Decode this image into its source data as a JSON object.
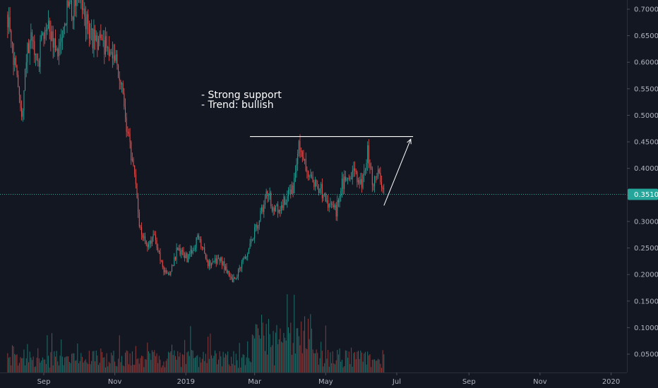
{
  "chart_data": {
    "type": "candlestick",
    "title": "",
    "xlabel": "",
    "ylabel": "",
    "ylim": [
      0.02,
      0.72
    ],
    "grid": false,
    "y_ticks": [
      "0.7000",
      "0.6500",
      "0.6000",
      "0.5500",
      "0.5000",
      "0.4500",
      "0.4000",
      "0.3500",
      "0.3000",
      "0.2500",
      "0.2000",
      "0.1500",
      "0.1000",
      "0.0500"
    ],
    "x_ticks": [
      "Sep",
      "Nov",
      "2019",
      "Mar",
      "May",
      "Jul",
      "Sep",
      "Nov",
      "2020"
    ],
    "current_price": {
      "value": 0.351,
      "label": "0.3510"
    },
    "annotations": [
      "- Strong support",
      "- Trend: bullish"
    ],
    "resistance_line": {
      "y": 0.46,
      "x_start": "2019-02-25",
      "x_end": "2019-07-15"
    },
    "projection_arrow": {
      "from": [
        "2019-06-20",
        0.33
      ],
      "to": [
        "2019-07-13",
        0.455
      ]
    },
    "price_keypoints": [
      [
        "2018-08-01",
        0.69
      ],
      [
        "2018-08-08",
        0.58
      ],
      [
        "2018-08-13",
        0.5
      ],
      [
        "2018-08-20",
        0.66
      ],
      [
        "2018-08-27",
        0.6
      ],
      [
        "2018-09-03",
        0.68
      ],
      [
        "2018-09-12",
        0.62
      ],
      [
        "2018-09-22",
        0.7
      ],
      [
        "2018-10-03",
        0.71
      ],
      [
        "2018-10-12",
        0.65
      ],
      [
        "2018-10-22",
        0.63
      ],
      [
        "2018-11-01",
        0.62
      ],
      [
        "2018-11-08",
        0.53
      ],
      [
        "2018-11-13",
        0.45
      ],
      [
        "2018-11-18",
        0.38
      ],
      [
        "2018-11-22",
        0.3
      ],
      [
        "2018-11-28",
        0.25
      ],
      [
        "2018-12-05",
        0.27
      ],
      [
        "2018-12-12",
        0.21
      ],
      [
        "2018-12-18",
        0.2
      ],
      [
        "2018-12-25",
        0.25
      ],
      [
        "2019-01-02",
        0.23
      ],
      [
        "2019-01-12",
        0.27
      ],
      [
        "2019-01-20",
        0.22
      ],
      [
        "2019-01-30",
        0.23
      ],
      [
        "2019-02-10",
        0.19
      ],
      [
        "2019-02-14",
        0.2
      ],
      [
        "2019-02-22",
        0.24
      ],
      [
        "2019-03-01",
        0.28
      ],
      [
        "2019-03-07",
        0.32
      ],
      [
        "2019-03-12",
        0.36
      ],
      [
        "2019-03-17",
        0.32
      ],
      [
        "2019-03-28",
        0.34
      ],
      [
        "2019-04-04",
        0.37
      ],
      [
        "2019-04-08",
        0.45
      ],
      [
        "2019-04-14",
        0.4
      ],
      [
        "2019-04-20",
        0.37
      ],
      [
        "2019-04-27",
        0.36
      ],
      [
        "2019-05-04",
        0.33
      ],
      [
        "2019-05-10",
        0.32
      ],
      [
        "2019-05-15",
        0.37
      ],
      [
        "2019-05-20",
        0.38
      ],
      [
        "2019-05-25",
        0.4
      ],
      [
        "2019-06-01",
        0.37
      ],
      [
        "2019-06-06",
        0.43
      ],
      [
        "2019-06-11",
        0.37
      ],
      [
        "2019-06-16",
        0.39
      ],
      [
        "2019-06-20",
        0.35
      ]
    ],
    "volume_scale": [
      0,
      0.23
    ]
  }
}
